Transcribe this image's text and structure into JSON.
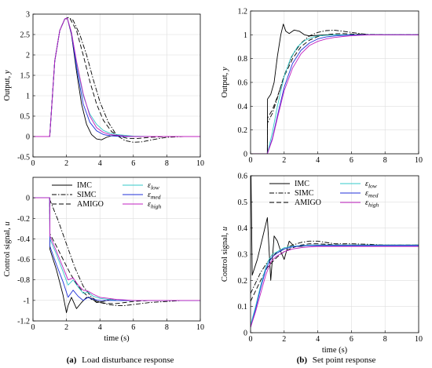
{
  "captions": [
    {
      "label": "(a)",
      "text": "Load disturbance response"
    },
    {
      "label": "(b)",
      "text": "Set point response"
    }
  ],
  "colors": {
    "IMC": "#000000",
    "SIMC": "#000000",
    "AMIGO": "#000000",
    "eps_low": "#33c8c8",
    "eps_med": "#2030d8",
    "eps_high": "#c020c0"
  },
  "legend": {
    "placement": "top-right",
    "entries": [
      {
        "key": "IMC",
        "label": "IMC",
        "dash": "solid"
      },
      {
        "key": "SIMC",
        "label": "SIMC",
        "dash": "dashdot"
      },
      {
        "key": "AMIGO",
        "label": "AMIGO",
        "dash": "dashed"
      },
      {
        "key": "eps_low",
        "label": "ε",
        "sub": "low",
        "dash": "solid"
      },
      {
        "key": "eps_med",
        "label": "ε",
        "sub": "med",
        "dash": "solid"
      },
      {
        "key": "eps_high",
        "label": "ε",
        "sub": "high",
        "dash": "solid"
      }
    ]
  },
  "chart_data": [
    {
      "id": "a-output",
      "type": "line",
      "xlabel": "",
      "ylabel": "Output, y",
      "xlim": [
        0,
        10
      ],
      "ylim": [
        -0.5,
        3
      ],
      "xticks": [
        0,
        2,
        4,
        6,
        8,
        10
      ],
      "yticks": [
        -0.5,
        0,
        0.5,
        1,
        1.5,
        2,
        2.5,
        3
      ],
      "grid": true,
      "series": [
        {
          "key": "IMC",
          "x": [
            0,
            1,
            1.3,
            1.6,
            1.9,
            2.05,
            2.3,
            2.6,
            2.9,
            3.2,
            3.5,
            3.8,
            4.1,
            4.4,
            4.7,
            5,
            5.5,
            6,
            7,
            8,
            10
          ],
          "y": [
            0,
            0,
            1.85,
            2.6,
            2.88,
            2.9,
            2.5,
            1.6,
            0.8,
            0.3,
            0.05,
            -0.06,
            -0.08,
            -0.02,
            0.02,
            0.03,
            0.01,
            0,
            0,
            0,
            0
          ]
        },
        {
          "key": "SIMC",
          "x": [
            0,
            1,
            1.3,
            1.6,
            1.9,
            2.1,
            2.4,
            2.8,
            3.2,
            3.6,
            4,
            4.5,
            5,
            5.5,
            6,
            6.5,
            7,
            7.5,
            8,
            9,
            10
          ],
          "y": [
            0,
            0,
            1.85,
            2.6,
            2.88,
            2.92,
            2.85,
            2.5,
            2.0,
            1.4,
            0.85,
            0.35,
            0.03,
            -0.1,
            -0.14,
            -0.13,
            -0.09,
            -0.05,
            -0.02,
            0,
            0
          ]
        },
        {
          "key": "AMIGO",
          "x": [
            0,
            1,
            1.3,
            1.6,
            1.9,
            2.2,
            2.6,
            3,
            3.4,
            3.8,
            4.2,
            4.7,
            5.2,
            5.7,
            6.2,
            7,
            8,
            10
          ],
          "y": [
            0,
            0,
            1.85,
            2.6,
            2.88,
            2.9,
            2.6,
            2.0,
            1.35,
            0.8,
            0.4,
            0.12,
            0.0,
            -0.05,
            -0.05,
            -0.02,
            0,
            0
          ]
        },
        {
          "key": "eps_low",
          "x": [
            0,
            1,
            1.3,
            1.6,
            1.9,
            2.05,
            2.3,
            2.6,
            3,
            3.4,
            3.8,
            4.2,
            4.6,
            5,
            5.5,
            6,
            7,
            8,
            10
          ],
          "y": [
            0,
            0,
            1.85,
            2.6,
            2.88,
            2.9,
            2.55,
            1.8,
            1.0,
            0.55,
            0.3,
            0.15,
            0.08,
            0.05,
            0.03,
            0.01,
            0,
            0,
            0
          ]
        },
        {
          "key": "eps_med",
          "x": [
            0,
            1,
            1.3,
            1.6,
            1.9,
            2.05,
            2.3,
            2.6,
            3,
            3.4,
            3.8,
            4.2,
            4.6,
            5,
            5.5,
            6,
            7,
            10
          ],
          "y": [
            0,
            0,
            1.85,
            2.6,
            2.88,
            2.9,
            2.52,
            1.7,
            0.8,
            0.35,
            0.14,
            0.05,
            0.02,
            0.01,
            0,
            0,
            0,
            0
          ]
        },
        {
          "key": "eps_high",
          "x": [
            0,
            1,
            1.3,
            1.6,
            1.9,
            2.05,
            2.3,
            2.6,
            3,
            3.4,
            3.8,
            4.2,
            4.6,
            5,
            5.5,
            6,
            7,
            10
          ],
          "y": [
            0,
            0,
            1.85,
            2.6,
            2.88,
            2.9,
            2.55,
            1.85,
            1.05,
            0.5,
            0.22,
            0.1,
            0.05,
            0.03,
            0.01,
            0,
            0,
            0
          ]
        }
      ]
    },
    {
      "id": "b-output",
      "type": "line",
      "xlabel": "",
      "ylabel": "Output, y",
      "xlim": [
        0,
        10
      ],
      "ylim": [
        0,
        1.2
      ],
      "xticks": [
        0,
        2,
        4,
        6,
        8,
        10
      ],
      "yticks": [
        0,
        0.2,
        0.4,
        0.6,
        0.8,
        1,
        1.2
      ],
      "grid": true,
      "series": [
        {
          "key": "IMC",
          "x": [
            0,
            1,
            1.01,
            1.2,
            1.4,
            1.6,
            1.8,
            1.95,
            2.1,
            2.3,
            2.6,
            2.9,
            3.2,
            3.5,
            4,
            4.5,
            5,
            6,
            8,
            10
          ],
          "y": [
            0,
            0,
            0.46,
            0.5,
            0.6,
            0.82,
            1.0,
            1.09,
            1.03,
            1.01,
            1.04,
            1.03,
            1.0,
            0.99,
            0.995,
            1.0,
            1.0,
            1.0,
            1.0,
            1.0
          ]
        },
        {
          "key": "SIMC",
          "x": [
            0,
            1,
            1.01,
            1.3,
            1.6,
            2,
            2.5,
            3,
            3.5,
            4,
            4.5,
            5,
            5.5,
            6,
            6.5,
            7,
            8,
            10
          ],
          "y": [
            0,
            0,
            0.26,
            0.34,
            0.47,
            0.66,
            0.83,
            0.93,
            0.99,
            1.02,
            1.035,
            1.038,
            1.03,
            1.02,
            1.01,
            1.003,
            1.0,
            1.0
          ]
        },
        {
          "key": "AMIGO",
          "x": [
            0,
            1,
            1.01,
            1.3,
            1.6,
            2,
            2.5,
            3,
            3.5,
            4,
            4.5,
            5,
            5.5,
            6,
            7,
            8,
            10
          ],
          "y": [
            0,
            0,
            0.3,
            0.37,
            0.48,
            0.65,
            0.8,
            0.9,
            0.955,
            0.985,
            1.0,
            1.008,
            1.01,
            1.007,
            1.002,
            1.0,
            1.0
          ]
        },
        {
          "key": "eps_low",
          "x": [
            0,
            1,
            1.3,
            1.6,
            2,
            2.4,
            2.8,
            3.2,
            3.6,
            4,
            4.5,
            5,
            5.5,
            6,
            7,
            8,
            10
          ],
          "y": [
            0,
            0,
            0.18,
            0.4,
            0.65,
            0.81,
            0.9,
            0.95,
            0.975,
            0.99,
            0.996,
            0.999,
            1.0,
            1.0,
            1.0,
            1.0,
            1.0
          ]
        },
        {
          "key": "eps_med",
          "x": [
            0,
            1,
            1.3,
            1.6,
            2,
            2.5,
            3,
            3.5,
            4,
            4.5,
            5,
            5.5,
            6,
            7,
            8,
            10
          ],
          "y": [
            0,
            0,
            0.13,
            0.32,
            0.56,
            0.76,
            0.87,
            0.93,
            0.965,
            0.982,
            0.99,
            0.995,
            0.998,
            1.0,
            1.0,
            1.0
          ]
        },
        {
          "key": "eps_high",
          "x": [
            0,
            1,
            1.3,
            1.6,
            2,
            2.5,
            3,
            3.5,
            4,
            4.5,
            5,
            5.5,
            6,
            6.5,
            7,
            8,
            10
          ],
          "y": [
            0,
            0,
            0.12,
            0.3,
            0.53,
            0.72,
            0.84,
            0.91,
            0.945,
            0.965,
            0.978,
            0.986,
            0.992,
            0.996,
            0.998,
            1.0,
            1.0
          ]
        }
      ]
    },
    {
      "id": "a-control",
      "type": "line",
      "xlabel": "time (s)",
      "ylabel": "Control signal, u",
      "xlim": [
        0,
        10
      ],
      "ylim": [
        -1.2,
        0.2
      ],
      "xticks": [
        0,
        2,
        4,
        6,
        8,
        10
      ],
      "yticks": [
        -1.2,
        -1,
        -0.8,
        -0.6,
        -0.4,
        -0.2,
        0
      ],
      "grid": true,
      "series": [
        {
          "key": "IMC",
          "x": [
            0,
            1,
            1.01,
            1.4,
            1.8,
            2.0,
            2.1,
            2.3,
            2.6,
            2.9,
            3.2,
            3.5,
            3.8,
            4.2,
            4.6,
            5,
            6,
            7,
            8,
            10
          ],
          "y": [
            0,
            0,
            -0.5,
            -0.7,
            -0.95,
            -1.12,
            -1.05,
            -0.97,
            -1.08,
            -1.02,
            -0.97,
            -0.98,
            -1.02,
            -1.01,
            -0.99,
            -1.0,
            -1.0,
            -1.0,
            -1.0,
            -1.0
          ]
        },
        {
          "key": "SIMC",
          "x": [
            0,
            1,
            1.01,
            1.5,
            2,
            2.5,
            3,
            3.5,
            4,
            4.5,
            5,
            5.5,
            6,
            6.5,
            7,
            8,
            9,
            10
          ],
          "y": [
            0,
            0,
            -0.02,
            -0.22,
            -0.45,
            -0.68,
            -0.86,
            -0.97,
            -1.02,
            -1.04,
            -1.05,
            -1.05,
            -1.04,
            -1.03,
            -1.02,
            -1.01,
            -1.0,
            -1.0
          ]
        },
        {
          "key": "AMIGO",
          "x": [
            0,
            1,
            1.01,
            1.4,
            1.8,
            2.2,
            2.6,
            3,
            3.5,
            4,
            4.5,
            5,
            5.5,
            6,
            7,
            8,
            10
          ],
          "y": [
            0,
            0,
            -0.35,
            -0.47,
            -0.6,
            -0.73,
            -0.84,
            -0.92,
            -0.99,
            -1.02,
            -1.03,
            -1.03,
            -1.02,
            -1.01,
            -1.0,
            -1.0,
            -1.0
          ]
        },
        {
          "key": "eps_low",
          "x": [
            0,
            1,
            1.01,
            1.4,
            1.8,
            2.1,
            2.4,
            2.7,
            3,
            3.3,
            3.6,
            4,
            4.5,
            5,
            6,
            7,
            10
          ],
          "y": [
            0,
            0,
            -0.4,
            -0.55,
            -0.72,
            -0.85,
            -0.8,
            -0.87,
            -0.93,
            -0.92,
            -0.96,
            -0.98,
            -0.99,
            -1.0,
            -1.0,
            -1.0,
            -1.0
          ]
        },
        {
          "key": "eps_med",
          "x": [
            0,
            1,
            1.01,
            1.4,
            1.8,
            2.1,
            2.4,
            2.7,
            3,
            3.3,
            3.6,
            4,
            4.5,
            5,
            6,
            7,
            10
          ],
          "y": [
            0,
            0,
            -0.47,
            -0.65,
            -0.82,
            -0.97,
            -0.9,
            -0.96,
            -1.0,
            -0.97,
            -0.99,
            -1.0,
            -1.0,
            -1.0,
            -1.0,
            -1.0,
            -1.0
          ]
        },
        {
          "key": "eps_high",
          "x": [
            0,
            1,
            1.01,
            1.4,
            1.8,
            2.1,
            2.4,
            2.7,
            3,
            3.3,
            3.6,
            4,
            4.5,
            5,
            6,
            7,
            10
          ],
          "y": [
            0,
            0,
            -0.37,
            -0.52,
            -0.68,
            -0.8,
            -0.78,
            -0.85,
            -0.9,
            -0.91,
            -0.94,
            -0.97,
            -0.98,
            -0.99,
            -1.0,
            -1.0,
            -1.0
          ]
        }
      ]
    },
    {
      "id": "b-control",
      "type": "line",
      "xlabel": "time (s)",
      "ylabel": "Control signal, u",
      "xlim": [
        0,
        10
      ],
      "ylim": [
        0,
        0.6
      ],
      "xticks": [
        0,
        2,
        4,
        6,
        8,
        10
      ],
      "yticks": [
        0,
        0.1,
        0.2,
        0.3,
        0.4,
        0.5,
        0.6
      ],
      "grid": true,
      "series": [
        {
          "key": "IMC",
          "x": [
            0,
            0.03,
            0.1,
            0.4,
            0.7,
            1.0,
            1.2,
            1.4,
            1.6,
            1.8,
            2.0,
            2.3,
            2.6,
            3,
            3.5,
            4,
            5,
            6,
            8,
            10
          ],
          "y": [
            0.6,
            0.6,
            0.22,
            0.28,
            0.36,
            0.44,
            0.2,
            0.37,
            0.35,
            0.31,
            0.28,
            0.35,
            0.33,
            0.33,
            0.335,
            0.335,
            0.335,
            0.335,
            0.335,
            0.335
          ]
        },
        {
          "key": "SIMC",
          "x": [
            0,
            0.3,
            0.6,
            1.0,
            1.3,
            1.6,
            2,
            2.5,
            3,
            3.5,
            4,
            4.5,
            5,
            6,
            7,
            8,
            10
          ],
          "y": [
            0.15,
            0.19,
            0.23,
            0.27,
            0.29,
            0.31,
            0.32,
            0.335,
            0.345,
            0.35,
            0.35,
            0.345,
            0.34,
            0.34,
            0.338,
            0.335,
            0.335
          ]
        },
        {
          "key": "AMIGO",
          "x": [
            0,
            0.3,
            0.6,
            1.0,
            1.3,
            1.6,
            2,
            2.5,
            3,
            3.5,
            4,
            4.5,
            5,
            6,
            7,
            8,
            10
          ],
          "y": [
            0.12,
            0.16,
            0.2,
            0.25,
            0.27,
            0.29,
            0.31,
            0.325,
            0.335,
            0.34,
            0.34,
            0.338,
            0.336,
            0.335,
            0.335,
            0.335,
            0.335
          ]
        },
        {
          "key": "eps_low",
          "x": [
            0,
            0.3,
            0.6,
            0.9,
            1.1,
            1.3,
            1.6,
            2,
            2.5,
            3,
            3.5,
            4,
            5,
            6,
            8,
            10
          ],
          "y": [
            0.03,
            0.1,
            0.18,
            0.25,
            0.28,
            0.3,
            0.31,
            0.325,
            0.33,
            0.333,
            0.335,
            0.335,
            0.335,
            0.335,
            0.335,
            0.335
          ]
        },
        {
          "key": "eps_med",
          "x": [
            0,
            0.3,
            0.6,
            0.9,
            1.1,
            1.3,
            1.6,
            2,
            2.5,
            3,
            3.5,
            4,
            5,
            6,
            8,
            10
          ],
          "y": [
            0.02,
            0.09,
            0.17,
            0.24,
            0.27,
            0.29,
            0.305,
            0.32,
            0.328,
            0.332,
            0.333,
            0.333,
            0.333,
            0.333,
            0.333,
            0.333
          ]
        },
        {
          "key": "eps_high",
          "x": [
            0,
            0.3,
            0.6,
            0.9,
            1.2,
            1.5,
            2,
            2.5,
            3,
            3.5,
            4,
            5,
            6,
            8,
            10
          ],
          "y": [
            0.02,
            0.08,
            0.15,
            0.22,
            0.27,
            0.29,
            0.31,
            0.32,
            0.325,
            0.328,
            0.33,
            0.33,
            0.33,
            0.33,
            0.33
          ]
        }
      ]
    }
  ]
}
